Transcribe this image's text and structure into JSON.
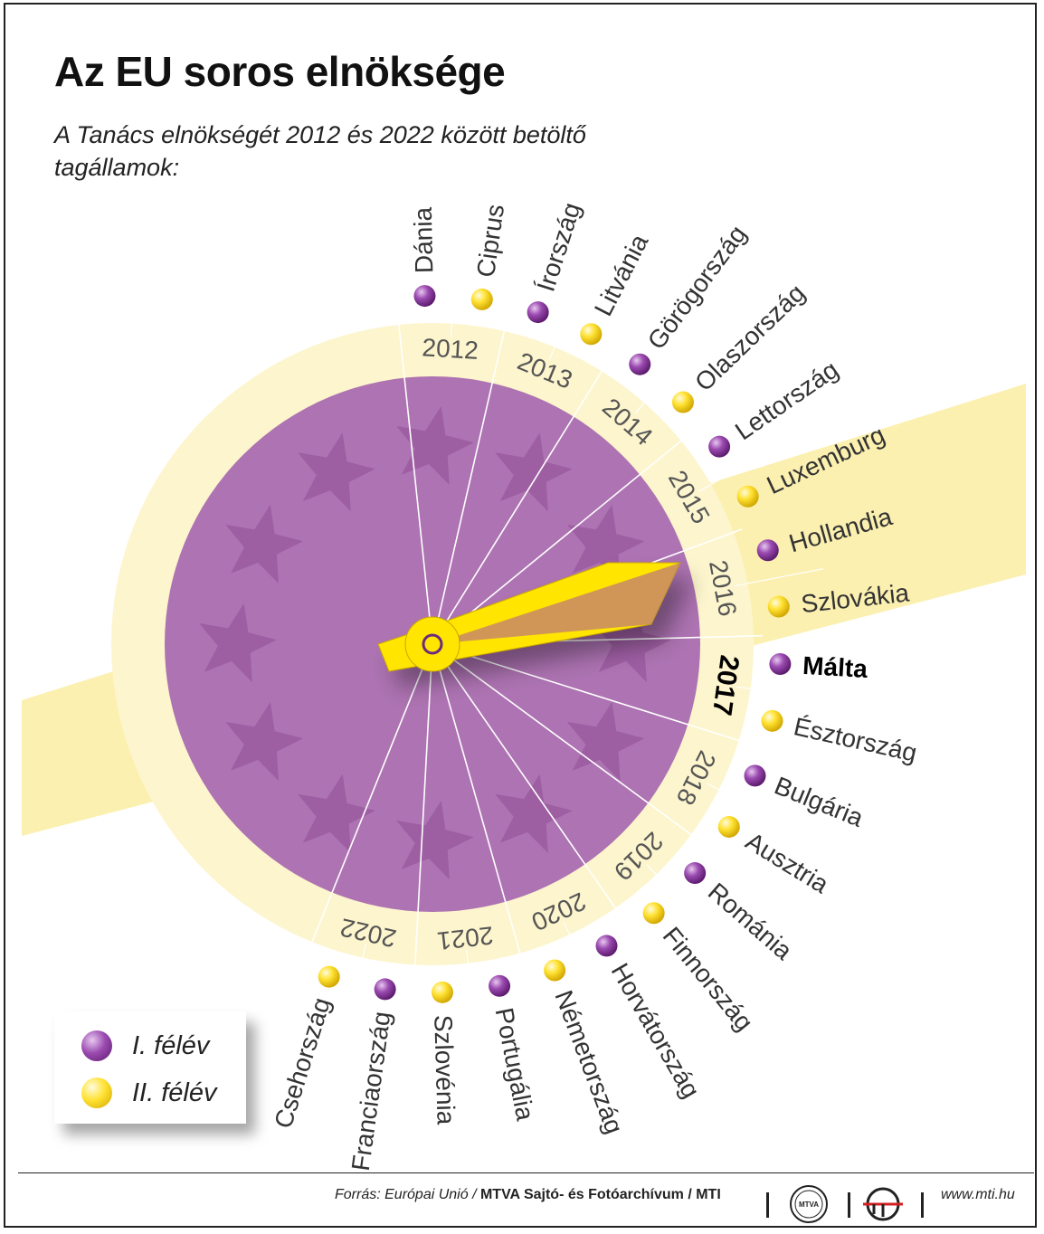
{
  "title": "Az EU soros elnöksége",
  "subtitle": "A Tanács elnökségét 2012 és 2022 között betöltő tagállamok:",
  "colors": {
    "circle": "#ad73b2",
    "ring": "#fdf5cd",
    "beam": "#fbf0b0",
    "hand": "#ffe500",
    "purple_dot": "#8f3fa5",
    "yellow_dot": "#ffe233"
  },
  "years": [
    "2012",
    "2013",
    "2014",
    "2015",
    "2016",
    "2017",
    "2018",
    "2019",
    "2020",
    "2021",
    "2022"
  ],
  "highlight_year": "2017",
  "countries": [
    {
      "name": "Dánia",
      "semester": "I"
    },
    {
      "name": "Ciprus",
      "semester": "II"
    },
    {
      "name": "Írország",
      "semester": "I"
    },
    {
      "name": "Litvánia",
      "semester": "II"
    },
    {
      "name": "Görögország",
      "semester": "I"
    },
    {
      "name": "Olaszország",
      "semester": "II"
    },
    {
      "name": "Lettország",
      "semester": "I"
    },
    {
      "name": "Luxemburg",
      "semester": "II"
    },
    {
      "name": "Hollandia",
      "semester": "I"
    },
    {
      "name": "Szlovákia",
      "semester": "II"
    },
    {
      "name": "Málta",
      "semester": "I"
    },
    {
      "name": "Észtország",
      "semester": "II"
    },
    {
      "name": "Bulgária",
      "semester": "I"
    },
    {
      "name": "Ausztria",
      "semester": "II"
    },
    {
      "name": "Románia",
      "semester": "I"
    },
    {
      "name": "Finnország",
      "semester": "II"
    },
    {
      "name": "Horvátország",
      "semester": "I"
    },
    {
      "name": "Németország",
      "semester": "II"
    },
    {
      "name": "Portugália",
      "semester": "I"
    },
    {
      "name": "Szlovénia",
      "semester": "II"
    },
    {
      "name": "Franciaország",
      "semester": "I"
    },
    {
      "name": "Csehország",
      "semester": "II"
    }
  ],
  "legend": {
    "first": "I. félév",
    "second": "II. félév"
  },
  "footer": {
    "source_prefix": "Forrás: Európai Unió /",
    "source_org": "MTVA Sajtó- és Fotóarchívum / MTI",
    "logo_text": "MTVA",
    "url": "www.mti.hu"
  }
}
